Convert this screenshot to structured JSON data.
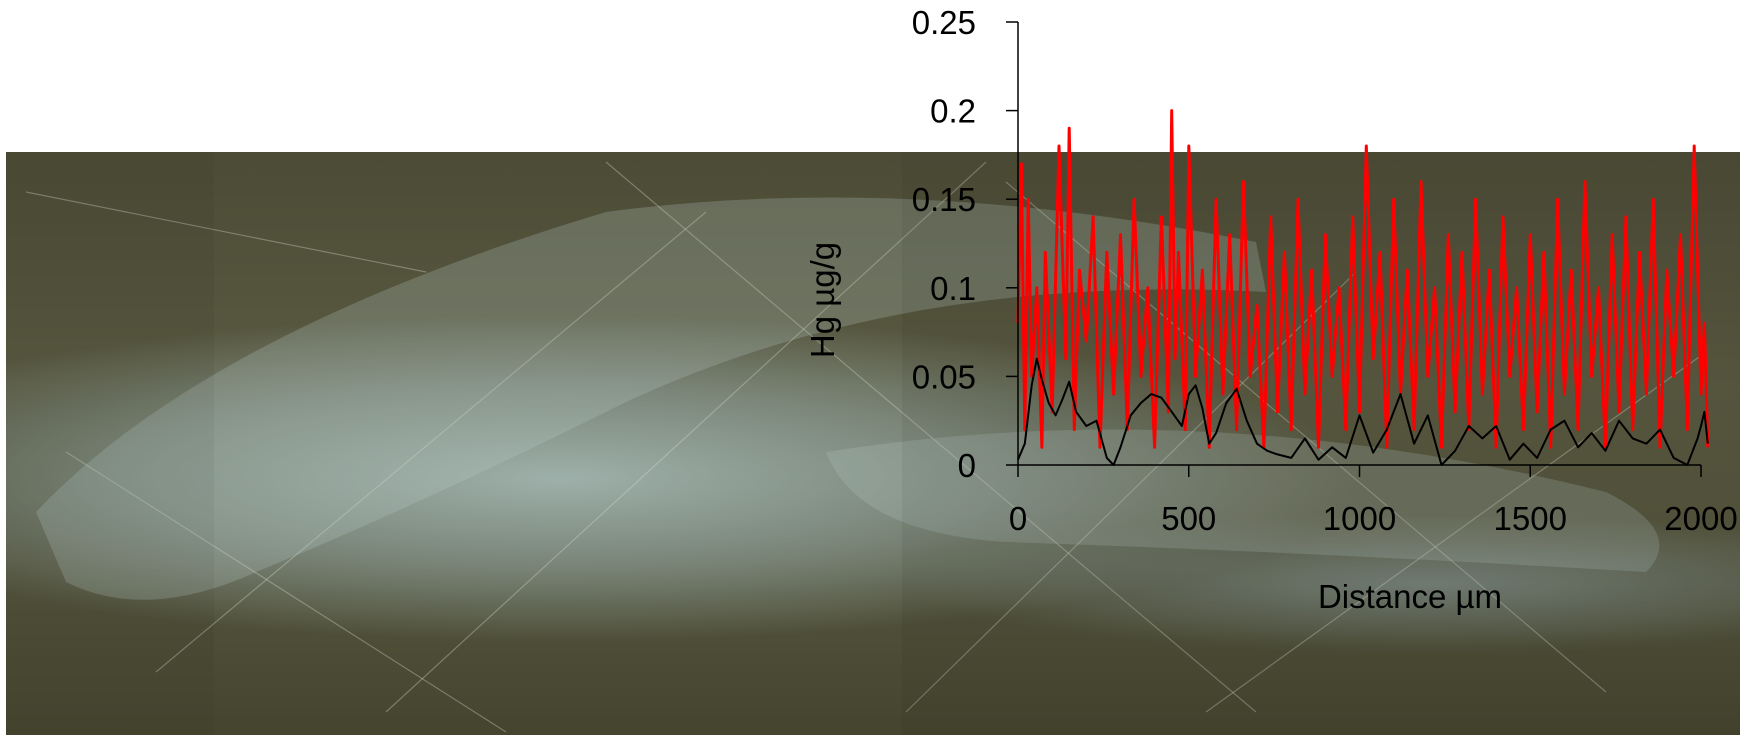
{
  "chart_data": {
    "type": "line",
    "xlabel": "Distance µm",
    "ylabel": "Hg µg/g",
    "xlim": [
      0,
      2000
    ],
    "ylim": [
      0,
      0.25
    ],
    "x_ticks": [
      "0",
      "500",
      "1000",
      "1500",
      "2000"
    ],
    "y_ticks": [
      "0",
      "0.05",
      "0.1",
      "0.15",
      "0.2",
      "0.25"
    ],
    "grid": false,
    "legend": "none",
    "background": "photograph of an otolith section",
    "series": [
      {
        "color": "#ff0000",
        "description": "raw signal",
        "x": [
          0,
          10,
          20,
          30,
          40,
          55,
          70,
          80,
          100,
          120,
          140,
          150,
          165,
          180,
          200,
          220,
          240,
          260,
          280,
          300,
          320,
          340,
          360,
          380,
          400,
          420,
          440,
          450,
          460,
          470,
          490,
          500,
          520,
          540,
          560,
          580,
          600,
          620,
          640,
          660,
          680,
          700,
          720,
          740,
          760,
          780,
          800,
          820,
          840,
          860,
          880,
          900,
          920,
          940,
          960,
          980,
          1000,
          1020,
          1040,
          1060,
          1080,
          1100,
          1120,
          1140,
          1160,
          1180,
          1200,
          1220,
          1240,
          1260,
          1280,
          1300,
          1320,
          1340,
          1360,
          1380,
          1400,
          1420,
          1440,
          1460,
          1480,
          1500,
          1520,
          1540,
          1560,
          1580,
          1600,
          1620,
          1640,
          1660,
          1680,
          1700,
          1720,
          1740,
          1760,
          1780,
          1800,
          1820,
          1840,
          1860,
          1880,
          1900,
          1920,
          1940,
          1960,
          1980,
          2000,
          2010,
          2020
        ],
        "y": [
          0.08,
          0.17,
          0.02,
          0.15,
          0.05,
          0.1,
          0.01,
          0.12,
          0.03,
          0.18,
          0.06,
          0.19,
          0.02,
          0.11,
          0.07,
          0.14,
          0.01,
          0.12,
          0.04,
          0.13,
          0.02,
          0.15,
          0.05,
          0.1,
          0.01,
          0.14,
          0.03,
          0.2,
          0.06,
          0.12,
          0.02,
          0.18,
          0.05,
          0.11,
          0.01,
          0.15,
          0.04,
          0.13,
          0.02,
          0.16,
          0.05,
          0.09,
          0.01,
          0.14,
          0.03,
          0.12,
          0.02,
          0.15,
          0.04,
          0.11,
          0.01,
          0.13,
          0.05,
          0.1,
          0.02,
          0.14,
          0.03,
          0.18,
          0.06,
          0.12,
          0.01,
          0.15,
          0.04,
          0.11,
          0.02,
          0.16,
          0.05,
          0.1,
          0.01,
          0.13,
          0.03,
          0.12,
          0.02,
          0.15,
          0.04,
          0.11,
          0.01,
          0.14,
          0.05,
          0.1,
          0.02,
          0.13,
          0.03,
          0.12,
          0.01,
          0.15,
          0.04,
          0.11,
          0.02,
          0.16,
          0.05,
          0.1,
          0.01,
          0.13,
          0.03,
          0.14,
          0.02,
          0.12,
          0.04,
          0.15,
          0.01,
          0.11,
          0.05,
          0.13,
          0.02,
          0.18,
          0.04,
          0.08,
          0.01
        ]
      },
      {
        "color": "#000000",
        "description": "smoothed mean",
        "x": [
          0,
          20,
          40,
          55,
          70,
          90,
          110,
          130,
          150,
          170,
          200,
          230,
          260,
          280,
          300,
          330,
          360,
          390,
          420,
          450,
          480,
          500,
          520,
          540,
          560,
          580,
          610,
          640,
          670,
          700,
          730,
          760,
          800,
          840,
          880,
          920,
          960,
          1000,
          1040,
          1080,
          1120,
          1160,
          1200,
          1240,
          1280,
          1320,
          1360,
          1400,
          1440,
          1480,
          1520,
          1560,
          1600,
          1640,
          1680,
          1720,
          1760,
          1800,
          1840,
          1880,
          1920,
          1960,
          1990,
          2000,
          2010,
          2020
        ],
        "y": [
          0.003,
          0.012,
          0.045,
          0.06,
          0.048,
          0.035,
          0.028,
          0.037,
          0.047,
          0.03,
          0.022,
          0.025,
          0.004,
          0.0,
          0.01,
          0.028,
          0.035,
          0.04,
          0.038,
          0.03,
          0.022,
          0.04,
          0.045,
          0.032,
          0.012,
          0.018,
          0.035,
          0.043,
          0.025,
          0.012,
          0.008,
          0.006,
          0.004,
          0.015,
          0.003,
          0.01,
          0.004,
          0.028,
          0.007,
          0.02,
          0.04,
          0.012,
          0.028,
          0.0,
          0.008,
          0.022,
          0.015,
          0.022,
          0.003,
          0.012,
          0.004,
          0.02,
          0.025,
          0.01,
          0.018,
          0.008,
          0.025,
          0.015,
          0.012,
          0.02,
          0.004,
          0.0,
          0.015,
          0.022,
          0.03,
          0.012
        ]
      }
    ]
  }
}
